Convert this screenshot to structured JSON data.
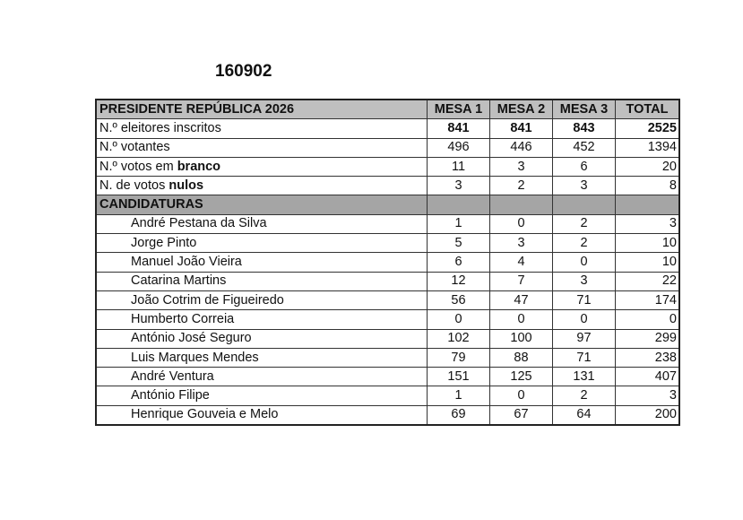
{
  "title": "160902",
  "table": {
    "header": [
      "PRESIDENTE REPÚBLICA 2026",
      "MESA 1",
      "MESA 2",
      "MESA 3",
      "TOTAL"
    ],
    "summary": [
      {
        "label": "N.º eleitores inscritos",
        "label_bold": "",
        "values": [
          "841",
          "841",
          "843",
          "2525"
        ]
      },
      {
        "label": "N.º votantes",
        "label_bold": "",
        "values": [
          "496",
          "446",
          "452",
          "1394"
        ]
      },
      {
        "label": "N.º votos em ",
        "label_bold": "branco",
        "values": [
          "11",
          "3",
          "6",
          "20"
        ]
      },
      {
        "label": "N. de votos ",
        "label_bold": "nulos",
        "values": [
          "3",
          "2",
          "3",
          "8"
        ]
      }
    ],
    "section_label": "CANDIDATURAS",
    "candidates": [
      {
        "name": "André Pestana da Silva",
        "values": [
          "1",
          "0",
          "2",
          "3"
        ]
      },
      {
        "name": "Jorge Pinto",
        "values": [
          "5",
          "3",
          "2",
          "10"
        ]
      },
      {
        "name": "Manuel João Vieira",
        "values": [
          "6",
          "4",
          "0",
          "10"
        ]
      },
      {
        "name": "Catarina Martins",
        "values": [
          "12",
          "7",
          "3",
          "22"
        ]
      },
      {
        "name": "João Cotrim de Figueiredo",
        "values": [
          "56",
          "47",
          "71",
          "174"
        ]
      },
      {
        "name": "Humberto Correia",
        "values": [
          "0",
          "0",
          "0",
          "0"
        ]
      },
      {
        "name": "António José Seguro",
        "values": [
          "102",
          "100",
          "97",
          "299"
        ]
      },
      {
        "name": "Luis Marques Mendes",
        "values": [
          "79",
          "88",
          "71",
          "238"
        ]
      },
      {
        "name": "André Ventura",
        "values": [
          "151",
          "125",
          "131",
          "407"
        ]
      },
      {
        "name": "António Filipe",
        "values": [
          "1",
          "0",
          "2",
          "3"
        ]
      },
      {
        "name": "Henrique Gouveia e Melo",
        "values": [
          "69",
          "67",
          "64",
          "200"
        ]
      }
    ]
  }
}
